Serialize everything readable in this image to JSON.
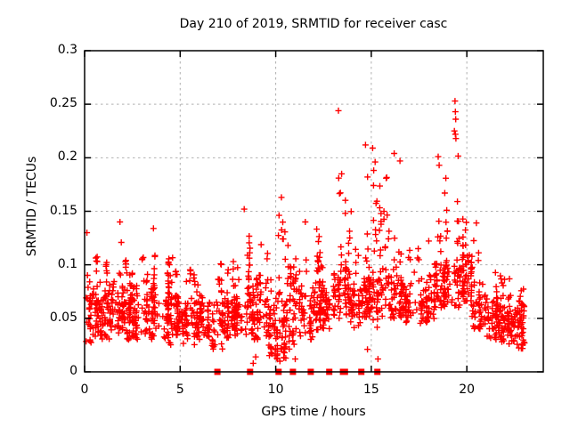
{
  "chart_data": {
    "type": "scatter",
    "title": "Day 210 of 2019, SRMTID for receiver casc",
    "xlabel": "GPS time / hours",
    "ylabel": "SRMTID / TECUs",
    "xlim": [
      0,
      24
    ],
    "ylim": [
      0,
      0.3
    ],
    "xticks": [
      "0",
      "5",
      "10",
      "15",
      "20"
    ],
    "yticks": [
      "0",
      "0.05",
      "0.1",
      "0.15",
      "0.2",
      "0.25",
      "0.3"
    ],
    "grid": true,
    "legend_position": "none",
    "marker": "plus-cross",
    "marker_color": "#ff0000",
    "grid_color": "#b0b0b0",
    "axis_color": "#000000",
    "peak_points": [
      [
        0.12,
        0.13
      ],
      [
        1.85,
        0.14
      ],
      [
        3.6,
        0.134
      ],
      [
        8.35,
        0.152
      ],
      [
        10.3,
        0.163
      ],
      [
        11.55,
        0.14
      ],
      [
        13.28,
        0.244
      ],
      [
        13.45,
        0.185
      ],
      [
        14.7,
        0.212
      ],
      [
        15.07,
        0.209
      ],
      [
        15.2,
        0.196
      ],
      [
        16.2,
        0.204
      ],
      [
        16.5,
        0.197
      ],
      [
        18.5,
        0.201
      ],
      [
        18.55,
        0.193
      ],
      [
        19.38,
        0.253
      ],
      [
        19.4,
        0.243
      ],
      [
        19.42,
        0.236
      ],
      [
        19.35,
        0.225
      ],
      [
        19.4,
        0.222
      ],
      [
        19.43,
        0.218
      ],
      [
        20.5,
        0.139
      ]
    ],
    "low_points": [
      [
        8.82,
        0.008
      ],
      [
        8.95,
        0.014
      ],
      [
        9.75,
        0.018
      ],
      [
        10.22,
        0.01
      ],
      [
        10.28,
        0.022
      ],
      [
        10.32,
        0.032
      ],
      [
        11.02,
        0.012
      ],
      [
        15.35,
        0.012
      ],
      [
        14.8,
        0.021
      ]
    ],
    "zero_value_hours": [
      6.95,
      8.66,
      10.15,
      10.9,
      11.83,
      12.8,
      13.52,
      13.62,
      14.48,
      15.32
    ],
    "density_segments": [
      [
        0.0,
        0.35,
        0.025,
        0.09,
        0.132,
        26
      ],
      [
        0.35,
        1.0,
        0.03,
        0.085,
        0.125,
        55
      ],
      [
        1.0,
        1.65,
        0.03,
        0.09,
        0.108,
        55
      ],
      [
        1.65,
        2.05,
        0.035,
        0.095,
        0.142,
        45
      ],
      [
        2.05,
        3.0,
        0.03,
        0.085,
        0.115,
        80
      ],
      [
        3.0,
        3.9,
        0.03,
        0.09,
        0.134,
        75
      ],
      [
        3.9,
        4.55,
        0.025,
        0.08,
        0.112,
        55
      ],
      [
        4.55,
        5.15,
        0.03,
        0.085,
        0.122,
        55
      ],
      [
        5.15,
        6.0,
        0.025,
        0.08,
        0.1,
        70
      ],
      [
        6.0,
        6.65,
        0.03,
        0.08,
        0.103,
        50
      ],
      [
        6.65,
        7.25,
        0.02,
        0.08,
        0.112,
        45
      ],
      [
        7.25,
        7.85,
        0.03,
        0.085,
        0.113,
        50
      ],
      [
        7.85,
        8.3,
        0.035,
        0.08,
        0.105,
        42
      ],
      [
        8.3,
        8.85,
        0.03,
        0.09,
        0.152,
        45
      ],
      [
        8.85,
        9.55,
        0.03,
        0.09,
        0.131,
        55
      ],
      [
        9.55,
        10.05,
        0.012,
        0.075,
        0.092,
        42
      ],
      [
        10.05,
        10.65,
        0.005,
        0.09,
        0.165,
        58
      ],
      [
        10.65,
        11.35,
        0.02,
        0.08,
        0.122,
        55
      ],
      [
        11.35,
        12.3,
        0.03,
        0.09,
        0.141,
        75
      ],
      [
        12.3,
        13.0,
        0.04,
        0.09,
        0.122,
        55
      ],
      [
        13.0,
        13.85,
        0.05,
        0.11,
        0.19,
        70
      ],
      [
        13.85,
        14.45,
        0.04,
        0.09,
        0.155,
        48
      ],
      [
        14.45,
        15.1,
        0.05,
        0.1,
        0.205,
        58
      ],
      [
        15.1,
        15.75,
        0.04,
        0.1,
        0.208,
        55
      ],
      [
        15.75,
        16.6,
        0.05,
        0.1,
        0.2,
        65
      ],
      [
        16.6,
        17.35,
        0.045,
        0.095,
        0.135,
        50
      ],
      [
        17.35,
        18.3,
        0.045,
        0.1,
        0.14,
        60
      ],
      [
        18.3,
        18.85,
        0.06,
        0.11,
        0.2,
        52
      ],
      [
        18.85,
        19.6,
        0.06,
        0.12,
        0.23,
        60
      ],
      [
        19.6,
        20.25,
        0.065,
        0.115,
        0.158,
        55
      ],
      [
        20.25,
        21.0,
        0.04,
        0.09,
        0.131,
        58
      ],
      [
        21.0,
        21.7,
        0.03,
        0.075,
        0.1,
        55
      ],
      [
        21.7,
        22.45,
        0.025,
        0.07,
        0.094,
        72
      ],
      [
        22.45,
        23.0,
        0.02,
        0.065,
        0.088,
        58
      ]
    ]
  }
}
